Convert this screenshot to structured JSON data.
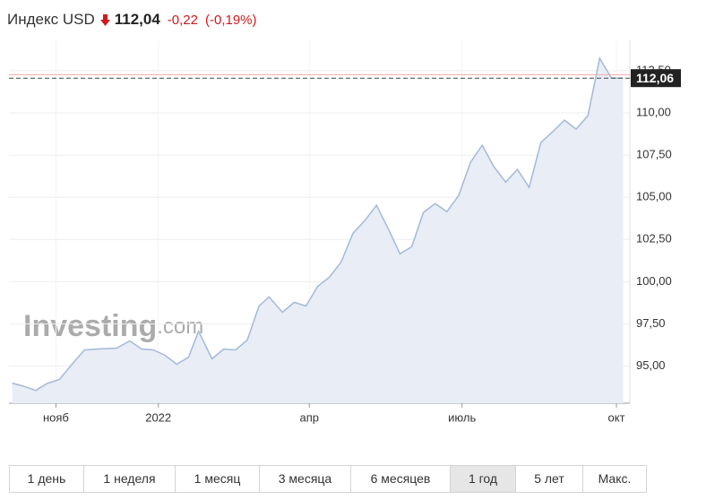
{
  "header": {
    "title": "Индекс USD",
    "price": "112,04",
    "change": "-0,22",
    "change_percent": "(-0,19%)"
  },
  "chart_data": {
    "type": "area",
    "x": [
      -87,
      -81,
      -73,
      -66,
      -59,
      -51,
      -44,
      -36,
      -25,
      -17,
      -10,
      -3,
      4,
      11,
      18,
      24,
      32,
      39,
      46,
      53,
      60,
      66,
      74,
      81,
      88,
      95,
      102,
      109,
      116,
      123,
      130,
      137,
      144,
      151,
      158,
      165,
      172,
      179,
      186,
      193,
      200,
      207,
      214,
      221,
      228,
      235,
      242,
      249,
      256,
      263,
      270,
      277
    ],
    "values": [
      93.99,
      93.83,
      93.56,
      93.99,
      94.2,
      95.16,
      95.96,
      96.01,
      96.06,
      96.49,
      96.01,
      95.96,
      95.64,
      95.11,
      95.53,
      97.07,
      95.43,
      96.01,
      95.96,
      96.54,
      98.56,
      99.1,
      98.19,
      98.78,
      98.56,
      99.73,
      100.27,
      101.17,
      102.87,
      103.62,
      104.52,
      103.14,
      101.65,
      102.07,
      104.1,
      104.63,
      104.15,
      105.11,
      107.07,
      108.09,
      106.81,
      105.9,
      106.65,
      105.59,
      108.25,
      108.88,
      109.57,
      109.04,
      109.84,
      113.24,
      112.07,
      112.06
    ],
    "last_value_label": "112,06",
    "prev_close": 112.26,
    "color": "#a3b9d9",
    "fill_color": "#e8edf6",
    "prev_close_color": "#f0a8a8",
    "xlim": [
      -89,
      281
    ],
    "xticks": [
      {
        "value": -61,
        "label": "нояб"
      },
      {
        "value": 0,
        "label": "2022"
      },
      {
        "value": 90,
        "label": "апр"
      },
      {
        "value": 181,
        "label": "июль"
      },
      {
        "value": 273,
        "label": "окт"
      }
    ],
    "ylim": [
      92.8,
      114.3
    ],
    "yticks": [
      {
        "value": 95,
        "label": "95,00"
      },
      {
        "value": 97.5,
        "label": "97,50"
      },
      {
        "value": 100,
        "label": "100,00"
      },
      {
        "value": 102.5,
        "label": "102,50"
      },
      {
        "value": 105,
        "label": "105,00"
      },
      {
        "value": 107.5,
        "label": "107,50"
      },
      {
        "value": 110,
        "label": "110,00"
      },
      {
        "value": 112.5,
        "label": "112,50"
      }
    ],
    "grid": true,
    "y_axis_side": "right",
    "watermark": [
      "Investing",
      ".com"
    ]
  },
  "ranges": {
    "buttons": [
      "1 день",
      "1 неделя",
      "1 месяц",
      "3 месяца",
      "6 месяцев",
      "1 год",
      "5 лет",
      "Макс."
    ],
    "active": 5
  }
}
